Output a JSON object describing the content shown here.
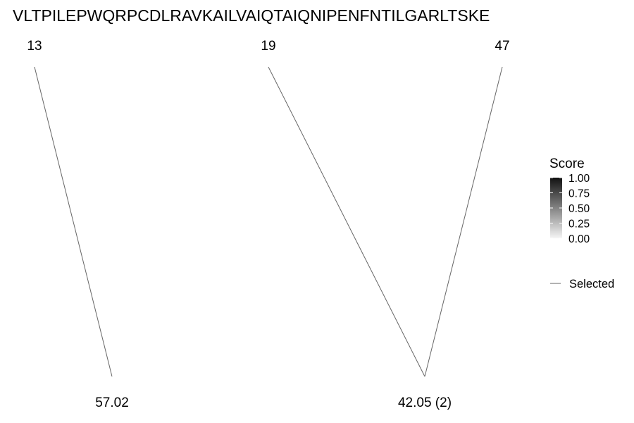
{
  "sequence": "VLTPILEPWQRPCDLRAVKAILVAIQTAIQNIPENFNTILGARLTSKE",
  "positions": [
    {
      "label": "13"
    },
    {
      "label": "19"
    },
    {
      "label": "47"
    }
  ],
  "masses": [
    {
      "label": "57.02"
    },
    {
      "label": "42.05 (2)"
    }
  ],
  "links": [
    {
      "from": 0,
      "to": 0
    },
    {
      "from": 1,
      "to": 1
    },
    {
      "from": 2,
      "to": 1
    }
  ],
  "legend": {
    "score_title": "Score",
    "score_ticks": [
      "1.00",
      "0.75",
      "0.50",
      "0.25",
      "0.00"
    ],
    "gradient_top_color": "#111111",
    "gradient_bottom_color": "#f5f5f5",
    "selected_label": "Selected"
  },
  "colors": {
    "link_line": "#666666",
    "text": "#000000"
  }
}
